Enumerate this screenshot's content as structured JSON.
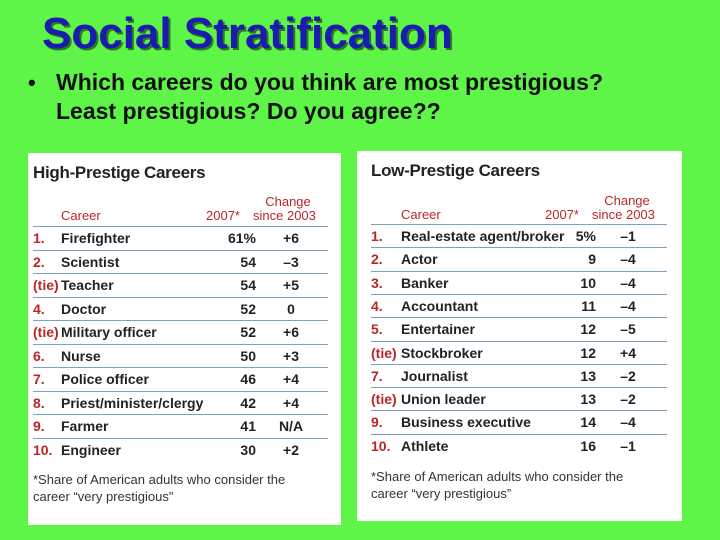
{
  "slide": {
    "title": "Social Stratification",
    "bullet": "Which careers do you think are most prestigious? Least prestigious?  Do you agree??"
  },
  "high_table": {
    "title": "High-Prestige Careers",
    "col_career": "Career",
    "col_2007": "2007*",
    "col_change_1": "Change",
    "col_change_2": "since 2003",
    "rows": [
      {
        "rank": "1.",
        "career": "Firefighter",
        "pct": "61%",
        "change": "+6"
      },
      {
        "rank": "2.",
        "career": "Scientist",
        "pct": "54",
        "change": "–3"
      },
      {
        "rank": "(tie)",
        "career": "Teacher",
        "pct": "54",
        "change": "+5"
      },
      {
        "rank": "4.",
        "career": "Doctor",
        "pct": "52",
        "change": "0"
      },
      {
        "rank": "(tie)",
        "career": "Military officer",
        "pct": "52",
        "change": "+6"
      },
      {
        "rank": "6.",
        "career": "Nurse",
        "pct": "50",
        "change": "+3"
      },
      {
        "rank": "7.",
        "career": "Police officer",
        "pct": "46",
        "change": "+4"
      },
      {
        "rank": "8.",
        "career": "Priest/minister/clergy",
        "pct": "42",
        "change": "+4"
      },
      {
        "rank": "9.",
        "career": "Farmer",
        "pct": "41",
        "change": "N/A"
      },
      {
        "rank": "10.",
        "career": "Engineer",
        "pct": "30",
        "change": "+2"
      }
    ],
    "footnote_1": "*Share of American adults who consider the",
    "footnote_2": "career “very prestigious”"
  },
  "low_table": {
    "title": "Low-Prestige Careers",
    "col_career": "Career",
    "col_2007": "2007*",
    "col_change_1": "Change",
    "col_change_2": "since 2003",
    "rows": [
      {
        "rank": "1.",
        "career": "Real-estate agent/broker",
        "pct": "5%",
        "change": "–1"
      },
      {
        "rank": "2.",
        "career": "Actor",
        "pct": "9",
        "change": "–4"
      },
      {
        "rank": "3.",
        "career": "Banker",
        "pct": "10",
        "change": "–4"
      },
      {
        "rank": "4.",
        "career": "Accountant",
        "pct": "11",
        "change": "–4"
      },
      {
        "rank": "5.",
        "career": "Entertainer",
        "pct": "12",
        "change": "–5"
      },
      {
        "rank": "(tie)",
        "career": "Stockbroker",
        "pct": "12",
        "change": "+4"
      },
      {
        "rank": "7.",
        "career": "Journalist",
        "pct": "13",
        "change": "–2"
      },
      {
        "rank": "(tie)",
        "career": "Union leader",
        "pct": "13",
        "change": "–2"
      },
      {
        "rank": "9.",
        "career": "Business executive",
        "pct": "14",
        "change": "–4"
      },
      {
        "rank": "10.",
        "career": "Athlete",
        "pct": "16",
        "change": "–1"
      }
    ],
    "footnote_1": "*Share of American adults who consider the",
    "footnote_2": "career “very prestigious”"
  },
  "colors": {
    "background": "#5ff548",
    "title": "#1b1bb0",
    "header_red": "#b7272a",
    "rule_blue": "#7ea2bd"
  }
}
